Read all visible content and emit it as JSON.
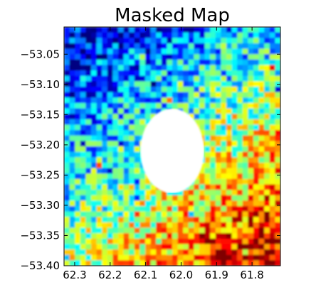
{
  "chart_data": {
    "type": "heatmap",
    "title": "Masked Map",
    "xlabel": "",
    "ylabel": "",
    "x_axis_inverted": true,
    "xlim": [
      62.33,
      61.72
    ],
    "ylim": [
      -53.4,
      -53.005
    ],
    "xticks": [
      62.3,
      62.2,
      62.1,
      62.0,
      61.9,
      61.8
    ],
    "xtick_labels": [
      "62.3",
      "62.2",
      "62.1",
      "62.0",
      "61.9",
      "61.8"
    ],
    "yticks": [
      -53.05,
      -53.1,
      -53.15,
      -53.2,
      -53.25,
      -53.3,
      -53.35,
      -53.4
    ],
    "ytick_labels": [
      "−53.05",
      "−53.10",
      "−53.15",
      "−53.20",
      "−53.25",
      "−53.30",
      "−53.35",
      "−53.40"
    ],
    "colormap": "jet",
    "grid": false,
    "masked_region": {
      "shape": "circle",
      "center": [
        62.025,
        -53.21
      ],
      "radius_x_deg": 0.09,
      "radius_y_deg": 0.07,
      "fill": "#ffffff"
    },
    "value_trend": {
      "description": "low (blue) toward upper-left, high (red) toward lower-right, with noisy pixels",
      "anchors": [
        {
          "x": 62.3,
          "y": -53.02,
          "value": 0.1
        },
        {
          "x": 61.75,
          "y": -53.02,
          "value": 0.35
        },
        {
          "x": 62.3,
          "y": -53.4,
          "value": 0.55
        },
        {
          "x": 61.75,
          "y": -53.4,
          "value": 0.95
        }
      ]
    }
  }
}
